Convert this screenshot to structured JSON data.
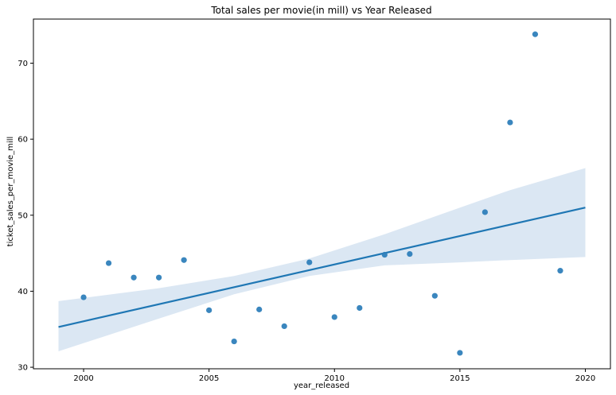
{
  "chart_data": {
    "type": "scatter",
    "title": "Total sales per movie(in mill) vs Year Released",
    "xlabel": "year_released",
    "ylabel": "ticket_sales_per_movie_mill",
    "xlim": [
      1998,
      2021
    ],
    "ylim": [
      29.8,
      75.8
    ],
    "xticks": [
      2000,
      2005,
      2010,
      2015,
      2020
    ],
    "yticks": [
      30,
      40,
      50,
      60,
      70
    ],
    "grid": false,
    "point_color": "#2f7fbb",
    "line_color": "#1f77b4",
    "band_color": "#dbe7f3",
    "points": [
      {
        "x": 2000,
        "y": 39.2
      },
      {
        "x": 2001,
        "y": 43.7
      },
      {
        "x": 2002,
        "y": 41.8
      },
      {
        "x": 2003,
        "y": 41.8
      },
      {
        "x": 2004,
        "y": 44.1
      },
      {
        "x": 2005,
        "y": 37.5
      },
      {
        "x": 2006,
        "y": 33.4
      },
      {
        "x": 2007,
        "y": 37.6
      },
      {
        "x": 2008,
        "y": 35.4
      },
      {
        "x": 2009,
        "y": 43.8
      },
      {
        "x": 2010,
        "y": 36.6
      },
      {
        "x": 2011,
        "y": 37.8
      },
      {
        "x": 2012,
        "y": 44.8
      },
      {
        "x": 2013,
        "y": 44.9
      },
      {
        "x": 2014,
        "y": 39.4
      },
      {
        "x": 2015,
        "y": 31.9
      },
      {
        "x": 2016,
        "y": 50.4
      },
      {
        "x": 2017,
        "y": 62.2
      },
      {
        "x": 2018,
        "y": 73.8
      },
      {
        "x": 2019,
        "y": 42.7
      }
    ],
    "regression_line": [
      {
        "x": 1999,
        "y": 35.3
      },
      {
        "x": 2020,
        "y": 51.0
      }
    ],
    "confidence_band": [
      {
        "x": 1999,
        "lower": 32.1,
        "upper": 38.7
      },
      {
        "x": 2003,
        "lower": 36.4,
        "upper": 40.4
      },
      {
        "x": 2006,
        "lower": 39.6,
        "upper": 42.0
      },
      {
        "x": 2009,
        "lower": 42.0,
        "upper": 44.3
      },
      {
        "x": 2012,
        "lower": 43.4,
        "upper": 47.5
      },
      {
        "x": 2015,
        "lower": 43.8,
        "upper": 51.0
      },
      {
        "x": 2017,
        "lower": 44.1,
        "upper": 53.3
      },
      {
        "x": 2020,
        "lower": 44.5,
        "upper": 56.2
      }
    ]
  }
}
